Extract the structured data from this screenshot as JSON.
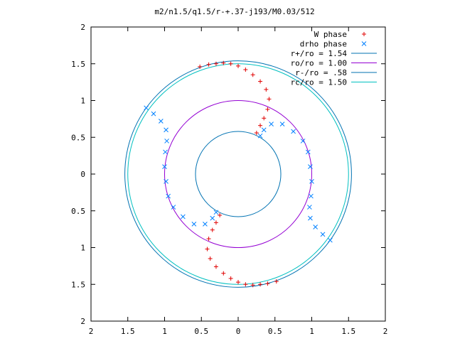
{
  "chart_data": {
    "type": "scatter",
    "title": "m2/n1.5/q1.5/r-+.37-j193/M0.03/512",
    "xlabel": "",
    "ylabel": "",
    "xlim": [
      -2,
      2
    ],
    "ylim": [
      -2,
      2
    ],
    "grid": false,
    "legend": "top-right",
    "x_ticks": [
      "2",
      "1.5",
      "1",
      "0.5",
      "0",
      "0.5",
      "1",
      "1.5",
      "2"
    ],
    "y_ticks": [
      "2",
      "1.5",
      "1",
      "0.5",
      "0",
      "0.5",
      "1",
      "1.5",
      "2"
    ],
    "circles": [
      {
        "name": "r+/ro = 1.54",
        "radius": 1.54,
        "color": "#0072b2"
      },
      {
        "name": "ro/ro = 1.00",
        "radius": 1.0,
        "color": "#9400d3"
      },
      {
        "name": "r-/ro = .58",
        "radius": 0.58,
        "color": "#0072b2"
      },
      {
        "name": "rc/ro = 1.50",
        "radius": 1.5,
        "color": "#00c0c0"
      }
    ],
    "series": [
      {
        "name": "W phase",
        "marker": "+",
        "color": "#e00000",
        "points": [
          [
            -0.52,
            1.46
          ],
          [
            -0.4,
            1.49
          ],
          [
            -0.3,
            1.5
          ],
          [
            -0.2,
            1.51
          ],
          [
            -0.1,
            1.5
          ],
          [
            0.0,
            1.47
          ],
          [
            0.1,
            1.42
          ],
          [
            0.2,
            1.35
          ],
          [
            0.3,
            1.26
          ],
          [
            0.38,
            1.15
          ],
          [
            0.42,
            1.02
          ],
          [
            0.4,
            0.88
          ],
          [
            0.35,
            0.76
          ],
          [
            0.3,
            0.66
          ],
          [
            0.25,
            0.56
          ],
          [
            -0.25,
            -0.56
          ],
          [
            -0.3,
            -0.66
          ],
          [
            -0.35,
            -0.76
          ],
          [
            -0.4,
            -0.88
          ],
          [
            -0.42,
            -1.02
          ],
          [
            -0.38,
            -1.15
          ],
          [
            -0.3,
            -1.26
          ],
          [
            -0.2,
            -1.35
          ],
          [
            -0.1,
            -1.42
          ],
          [
            0.0,
            -1.47
          ],
          [
            0.1,
            -1.5
          ],
          [
            0.2,
            -1.51
          ],
          [
            0.3,
            -1.5
          ],
          [
            0.4,
            -1.49
          ],
          [
            0.52,
            -1.46
          ]
        ]
      },
      {
        "name": "drho phase",
        "marker": "x",
        "color": "#0080ff",
        "points": [
          [
            -1.25,
            0.9
          ],
          [
            -1.15,
            0.82
          ],
          [
            -1.05,
            0.72
          ],
          [
            -0.98,
            0.6
          ],
          [
            -0.97,
            0.45
          ],
          [
            -0.99,
            0.3
          ],
          [
            -1.0,
            0.1
          ],
          [
            -0.98,
            -0.1
          ],
          [
            -0.95,
            -0.3
          ],
          [
            -0.88,
            -0.45
          ],
          [
            -0.75,
            -0.58
          ],
          [
            -0.6,
            -0.68
          ],
          [
            -0.45,
            -0.68
          ],
          [
            -0.35,
            -0.6
          ],
          [
            -0.3,
            -0.52
          ],
          [
            0.3,
            0.52
          ],
          [
            0.35,
            0.6
          ],
          [
            0.45,
            0.68
          ],
          [
            0.6,
            0.68
          ],
          [
            0.75,
            0.58
          ],
          [
            0.88,
            0.45
          ],
          [
            0.95,
            0.3
          ],
          [
            0.98,
            0.1
          ],
          [
            1.0,
            -0.1
          ],
          [
            0.99,
            -0.3
          ],
          [
            0.97,
            -0.45
          ],
          [
            0.98,
            -0.6
          ],
          [
            1.05,
            -0.72
          ],
          [
            1.15,
            -0.82
          ],
          [
            1.25,
            -0.9
          ]
        ]
      }
    ]
  }
}
